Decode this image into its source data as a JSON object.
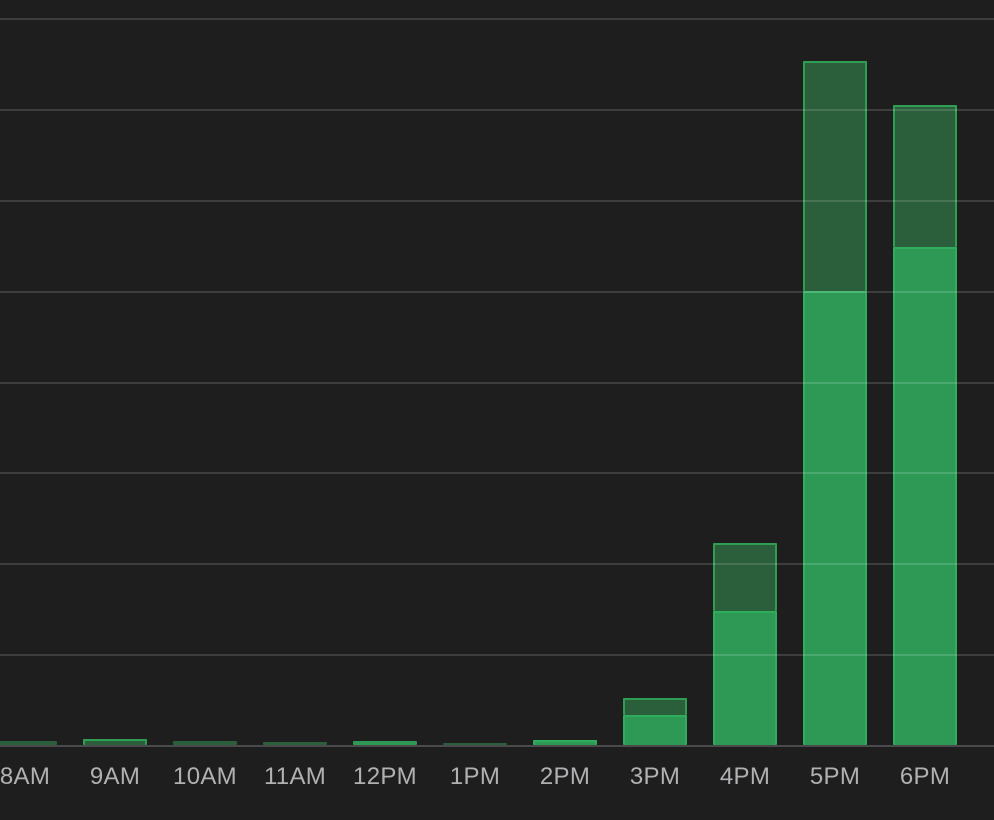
{
  "chart_data": {
    "type": "bar",
    "stacked": true,
    "title": "",
    "xlabel": "",
    "ylabel": "",
    "categories": [
      "8AM",
      "9AM",
      "10AM",
      "11AM",
      "12PM",
      "1PM",
      "2PM",
      "3PM",
      "4PM",
      "5PM",
      "6PM"
    ],
    "series": [
      {
        "name": "bottom-light-green",
        "color": "#2D9955",
        "border_color": "#2FAD5C",
        "values": [
          0,
          0,
          0,
          0,
          0.045,
          0,
          0.05,
          0.33,
          1.47,
          5.0,
          5.48
        ]
      },
      {
        "name": "top-dark-green",
        "color": "#2B5E3B",
        "border_color": "#2E9E52",
        "values": [
          0.04,
          0.07,
          0.04,
          0.035,
          0,
          0.025,
          0,
          0.185,
          0.75,
          2.53,
          1.56
        ]
      }
    ],
    "ylim": [
      0,
      8
    ],
    "y_gridline_step": 1,
    "grid": true,
    "legend": false,
    "x_tick_labels_visible": true,
    "y_tick_labels_visible": false
  },
  "style": {
    "background": "#1E1E1F",
    "gridline_color": "rgba(255,255,255,0.14)",
    "axis_line_color": "#4A4A4D",
    "label_color": "#B1B1B3"
  }
}
